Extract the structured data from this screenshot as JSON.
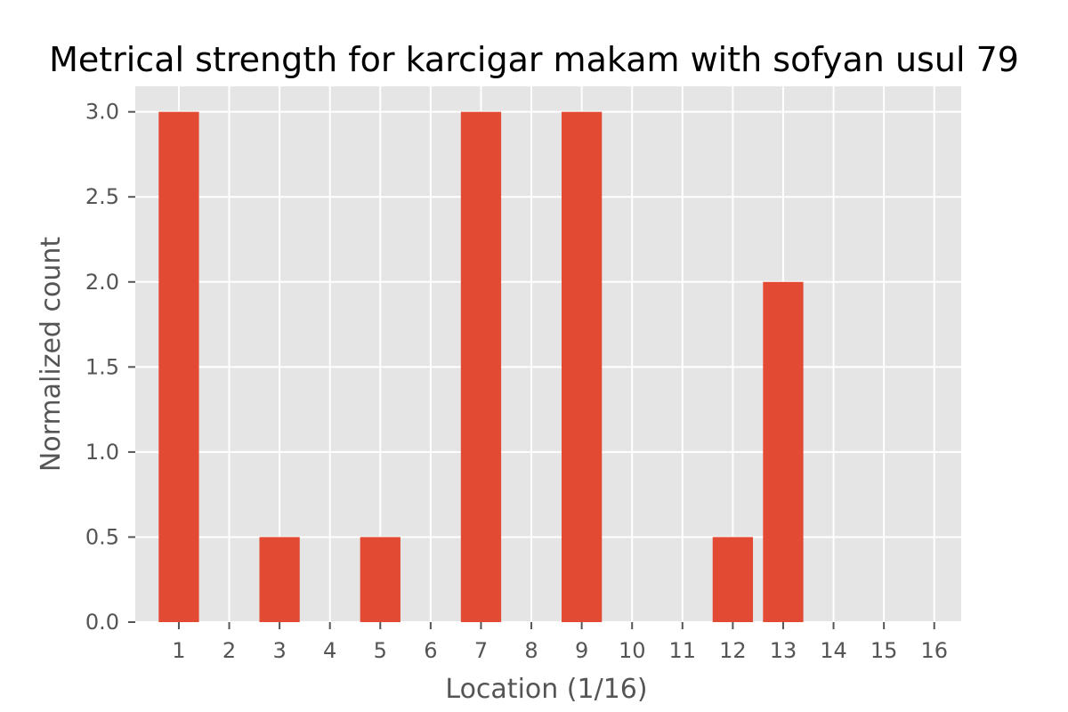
{
  "chart_data": {
    "type": "bar",
    "title": "Metrical strength for karcigar makam with sofyan usul 79",
    "xlabel": "Location (1/16)",
    "ylabel": "Normalized count",
    "categories": [
      "1",
      "2",
      "3",
      "4",
      "5",
      "6",
      "7",
      "8",
      "9",
      "10",
      "11",
      "12",
      "13",
      "14",
      "15",
      "16"
    ],
    "values": [
      3.0,
      0,
      0.5,
      0,
      0.5,
      0,
      3.0,
      0,
      3.0,
      0,
      0,
      0.5,
      2.0,
      0,
      0,
      0
    ],
    "yticks": [
      "0.0",
      "0.5",
      "1.0",
      "1.5",
      "2.0",
      "2.5",
      "3.0"
    ],
    "ylim": [
      0,
      3.0
    ],
    "grid": true,
    "colors": {
      "bar": "#E24A33",
      "plot_background": "#E5E5E5",
      "grid": "#FFFFFF",
      "text": "#555555"
    }
  }
}
